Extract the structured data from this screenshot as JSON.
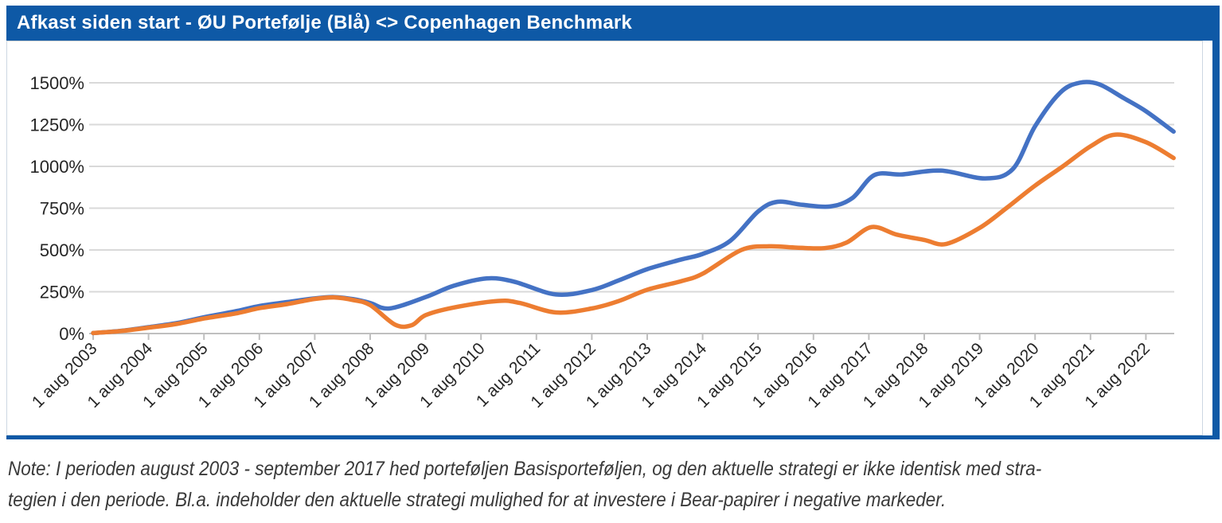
{
  "header": {
    "title": "Afkast siden start - ØU Portefølje (Blå) <> Copenhagen Benchmark"
  },
  "note": {
    "line1": "Note: I perioden august 2003 - september 2017 hed porteføljen Basisporteføljen, og den aktuelle strategi er ikke identisk med stra-",
    "line2": "tegien i den periode. Bl.a. indeholder den aktuelle strategi mulighed for at investere i Bear-papirer i negative markeder."
  },
  "chart_data": {
    "type": "line",
    "title": "Afkast siden start - ØU Portefølje (Blå) <> Copenhagen Benchmark",
    "grid": true,
    "legend": "none",
    "x_axis": {
      "start_year": 2003,
      "tick_years": [
        2003,
        2004,
        2005,
        2006,
        2007,
        2008,
        2009,
        2010,
        2011,
        2012,
        2013,
        2014,
        2015,
        2016,
        2017,
        2018,
        2019,
        2020,
        2021,
        2022
      ],
      "tick_labels": [
        "1 aug 2003",
        "1 aug 2004",
        "1 aug 2005",
        "1 aug 2006",
        "1 aug 2007",
        "1 aug 2008",
        "1 aug 2009",
        "1 aug 2010",
        "1 aug 2011",
        "1 aug 2012",
        "1 aug 2013",
        "1 aug 2014",
        "1 aug 2015",
        "1 aug 2016",
        "1 aug 2017",
        "1 aug 2018",
        "1 aug 2019",
        "1 aug 2020",
        "1 aug 2021",
        "1 aug 2022"
      ]
    },
    "y_axis": {
      "min": 0,
      "max": 1500,
      "step": 250,
      "unit": "%",
      "tick_values": [
        0,
        250,
        500,
        750,
        1000,
        1250,
        1500
      ],
      "tick_labels": [
        "0%",
        "250%",
        "500%",
        "750%",
        "1000%",
        "1250%",
        "1500%"
      ]
    },
    "colors": {
      "gridline": "#D9D9D9",
      "axis_line": "#BFBFBF",
      "tick_text": "#262626"
    },
    "series": [
      {
        "id": "portfolio",
        "name": "ØU Portefølje (Blå)",
        "color": "#4472C4",
        "points": [
          [
            2003,
            3
          ],
          [
            2003.5,
            16
          ],
          [
            2004,
            38
          ],
          [
            2004.5,
            62
          ],
          [
            2005,
            97
          ],
          [
            2005.6,
            135
          ],
          [
            2006,
            165
          ],
          [
            2006.5,
            188
          ],
          [
            2007,
            210
          ],
          [
            2007.35,
            218
          ],
          [
            2007.7,
            205
          ],
          [
            2008,
            183
          ],
          [
            2008.35,
            150
          ],
          [
            2009,
            218
          ],
          [
            2009.5,
            285
          ],
          [
            2010.1,
            330
          ],
          [
            2010.6,
            310
          ],
          [
            2011.35,
            234
          ],
          [
            2012,
            260
          ],
          [
            2012.5,
            320
          ],
          [
            2013,
            385
          ],
          [
            2013.6,
            442
          ],
          [
            2014,
            476
          ],
          [
            2014.5,
            555
          ],
          [
            2015,
            730
          ],
          [
            2015.35,
            788
          ],
          [
            2015.8,
            770
          ],
          [
            2016.3,
            760
          ],
          [
            2016.7,
            810
          ],
          [
            2017.1,
            948
          ],
          [
            2017.6,
            952
          ],
          [
            2018.3,
            975
          ],
          [
            2019.1,
            928
          ],
          [
            2019.6,
            985
          ],
          [
            2020,
            1240
          ],
          [
            2020.45,
            1440
          ],
          [
            2020.8,
            1500
          ],
          [
            2021.15,
            1492
          ],
          [
            2021.6,
            1408
          ],
          [
            2022,
            1330
          ],
          [
            2022.5,
            1208
          ]
        ]
      },
      {
        "id": "benchmark",
        "name": "Copenhagen Benchmark",
        "color": "#ED7D31",
        "points": [
          [
            2003,
            3
          ],
          [
            2003.5,
            15
          ],
          [
            2004,
            35
          ],
          [
            2004.5,
            57
          ],
          [
            2005,
            90
          ],
          [
            2005.6,
            122
          ],
          [
            2006,
            152
          ],
          [
            2006.5,
            176
          ],
          [
            2007,
            207
          ],
          [
            2007.35,
            216
          ],
          [
            2007.7,
            200
          ],
          [
            2008,
            170
          ],
          [
            2008.45,
            53
          ],
          [
            2008.75,
            50
          ],
          [
            2009,
            110
          ],
          [
            2009.5,
            155
          ],
          [
            2010.3,
            195
          ],
          [
            2010.7,
            183
          ],
          [
            2011.35,
            126
          ],
          [
            2012,
            150
          ],
          [
            2012.5,
            196
          ],
          [
            2013,
            262
          ],
          [
            2013.6,
            312
          ],
          [
            2014,
            358
          ],
          [
            2014.7,
            500
          ],
          [
            2015.2,
            522
          ],
          [
            2015.7,
            514
          ],
          [
            2016.2,
            511
          ],
          [
            2016.6,
            545
          ],
          [
            2017.05,
            637
          ],
          [
            2017.5,
            592
          ],
          [
            2018,
            560
          ],
          [
            2018.4,
            536
          ],
          [
            2019,
            632
          ],
          [
            2019.5,
            755
          ],
          [
            2020,
            885
          ],
          [
            2020.5,
            1000
          ],
          [
            2021,
            1120
          ],
          [
            2021.45,
            1190
          ],
          [
            2022,
            1145
          ],
          [
            2022.5,
            1050
          ]
        ]
      }
    ]
  },
  "colors": {
    "header_bg": "#0E59A6",
    "header_text": "#FFFFFF",
    "series_blue": "#4472C4",
    "series_orange": "#ED7D31",
    "note_text": "#3A3A3A",
    "panel_border": "#0E59A6"
  }
}
